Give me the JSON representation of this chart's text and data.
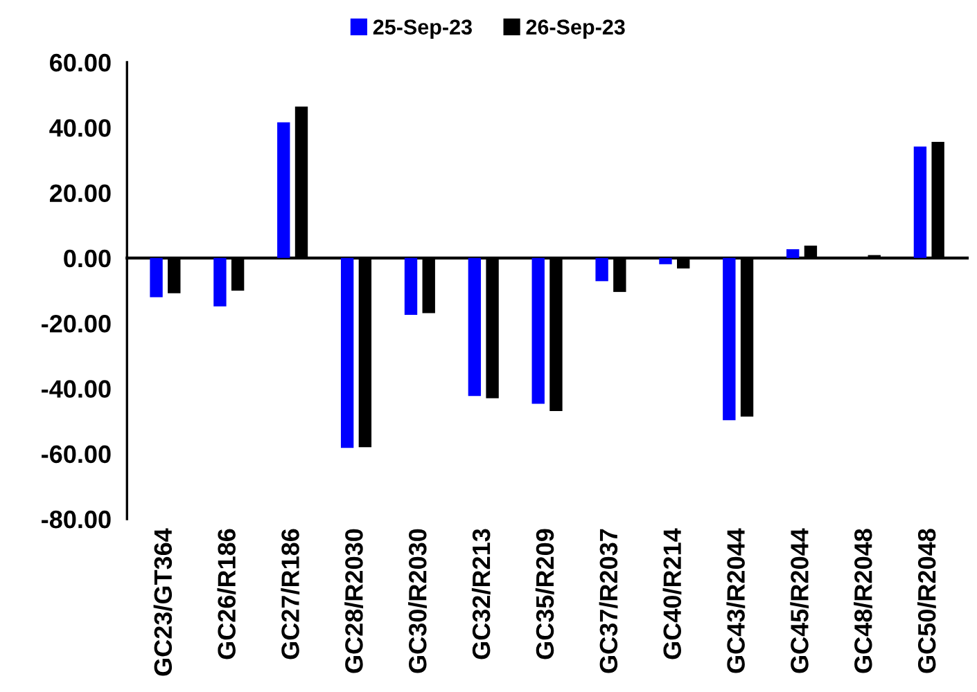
{
  "chart_data": {
    "type": "bar",
    "categories": [
      "GC23/GT364",
      "GC26/R186",
      "GC27/R186",
      "GC28/R2030",
      "GC30/R2030",
      "GC32/R213",
      "GC35/R209",
      "GC37/R2037",
      "GC40/R214",
      "GC43/R2044",
      "GC45/R2044",
      "GC48/R2048",
      "GC50/R2048"
    ],
    "series": [
      {
        "name": "25-Sep-23",
        "color": "#0000ff",
        "values": [
          -12.0,
          -14.8,
          41.6,
          -58.2,
          -17.4,
          -42.3,
          -44.7,
          -7.1,
          -1.9,
          -49.7,
          2.7,
          null,
          34.2
        ]
      },
      {
        "name": "26-Sep-23",
        "color": "#000000",
        "values": [
          -10.8,
          -10.0,
          46.4,
          -58.0,
          -16.9,
          -43.0,
          -46.9,
          -10.4,
          -3.2,
          -48.6,
          3.8,
          0.9,
          35.6
        ]
      }
    ],
    "ylim": [
      -80,
      60
    ],
    "yticks": [
      {
        "value": -80,
        "label": "-80.00"
      },
      {
        "value": -60,
        "label": "-60.00"
      },
      {
        "value": -40,
        "label": "-40.00"
      },
      {
        "value": -20,
        "label": "-20.00"
      },
      {
        "value": 0,
        "label": "0.00"
      },
      {
        "value": 20,
        "label": "20.00"
      },
      {
        "value": 40,
        "label": "40.00"
      },
      {
        "value": 60,
        "label": "60.00"
      }
    ],
    "legend": "top"
  }
}
